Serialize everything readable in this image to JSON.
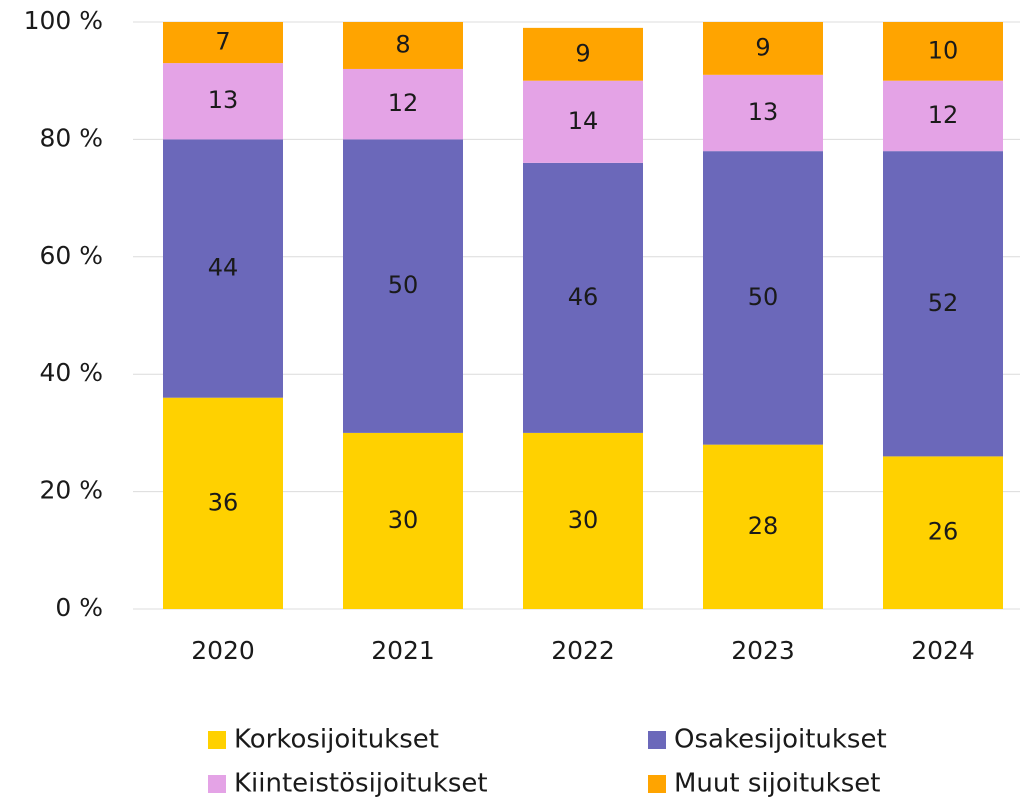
{
  "chart_data": {
    "type": "stacked_bar",
    "categories": [
      "2020",
      "2021",
      "2022",
      "2023",
      "2024"
    ],
    "series": [
      {
        "name": "Korkosijoitukset",
        "color": "#FFD100",
        "values": [
          36,
          30,
          30,
          28,
          26
        ]
      },
      {
        "name": "Osakesijoitukset",
        "color": "#6B68BA",
        "values": [
          44,
          50,
          46,
          50,
          52
        ]
      },
      {
        "name": "Kiinteistösijoitukset",
        "color": "#E4A3E6",
        "values": [
          13,
          12,
          14,
          13,
          12
        ]
      },
      {
        "name": "Muut sijoitukset",
        "color": "#FFA400",
        "values": [
          7,
          8,
          9,
          9,
          10
        ]
      }
    ],
    "ylim": [
      0,
      100
    ],
    "yticks": [
      {
        "value": 0,
        "label": "0 %"
      },
      {
        "value": 20,
        "label": "20 %"
      },
      {
        "value": 40,
        "label": "40 %"
      },
      {
        "value": 60,
        "label": "60 %"
      },
      {
        "value": 80,
        "label": "80 %"
      },
      {
        "value": 100,
        "label": "100 %"
      }
    ],
    "grid": true,
    "legend": "bottom"
  }
}
